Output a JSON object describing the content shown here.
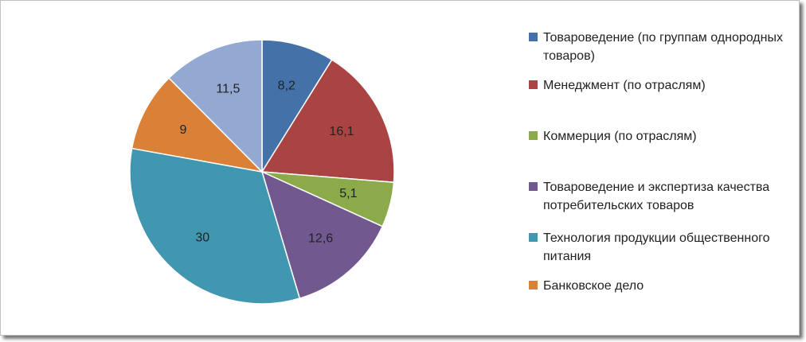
{
  "chart_data": {
    "type": "pie",
    "start_angle_deg": 0,
    "direction": "clockwise",
    "slices": [
      {
        "label": "Товароведение (по группам однородных товаров)",
        "value": 8.2,
        "value_label": "8,2",
        "color": "#4472A8"
      },
      {
        "label": "Менеджмент (по отраслям)",
        "value": 16.1,
        "value_label": "16,1",
        "color": "#AA4443"
      },
      {
        "label": "Коммерция (по отраслям)",
        "value": 5.1,
        "value_label": "5,1",
        "color": "#8BAA4A"
      },
      {
        "label": "Товароведение и экспертиза качества потребительских товаров",
        "value": 12.6,
        "value_label": "12,6",
        "color": "#71588F"
      },
      {
        "label": "Технология продукции общественного питания",
        "value": 30,
        "value_label": "30",
        "color": "#4197AF"
      },
      {
        "label": "Банковское дело",
        "value": 9,
        "value_label": "9",
        "color": "#DA8137"
      },
      {
        "label": "",
        "value": 11.5,
        "value_label": "11,5",
        "color": "#94A9D1",
        "in_legend": false
      }
    ],
    "legend_placement": "right"
  }
}
